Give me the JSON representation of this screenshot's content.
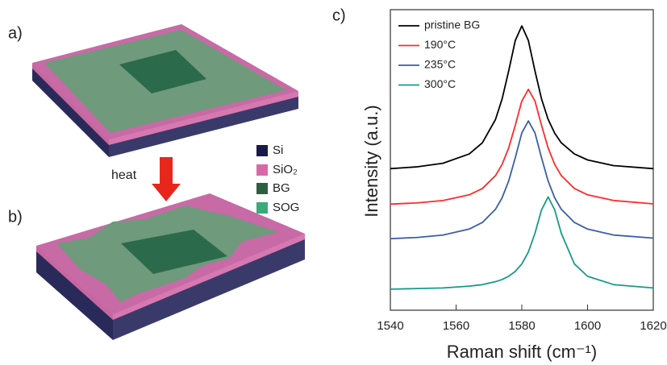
{
  "figure": {
    "panel_labels": [
      "a)",
      "b)",
      "c)"
    ],
    "arrow_label": "heat",
    "legend": [
      "Si",
      "SiO₂",
      "BG",
      "SOG"
    ]
  },
  "chart_data": {
    "type": "line",
    "xlabel": "Raman shift (cm⁻¹)",
    "ylabel": "Intensity (a.u.)",
    "x": [
      1540,
      1548,
      1556,
      1564,
      1568,
      1572,
      1574,
      1576,
      1578,
      1580,
      1582,
      1584,
      1586,
      1588,
      1590,
      1592,
      1596,
      1600,
      1608,
      1620
    ],
    "series": [
      {
        "name": "pristine BG",
        "color": "#000000",
        "values": [
          4.71,
          4.77,
          4.89,
          5.2,
          5.57,
          6.35,
          7.03,
          7.96,
          8.97,
          9.46,
          8.97,
          7.96,
          7.03,
          6.35,
          5.89,
          5.57,
          5.2,
          5.0,
          4.81,
          4.71
        ]
      },
      {
        "name": "190°C",
        "color": "#ff2a2a",
        "values": [
          3.53,
          3.57,
          3.65,
          3.84,
          4.05,
          4.48,
          4.85,
          5.4,
          6.15,
          6.96,
          7.35,
          6.96,
          6.15,
          5.4,
          4.85,
          4.48,
          4.05,
          3.84,
          3.65,
          3.54
        ]
      },
      {
        "name": "235°C",
        "color": "#3a5fa8",
        "values": [
          2.38,
          2.42,
          2.5,
          2.7,
          2.92,
          3.36,
          3.74,
          4.3,
          5.07,
          5.9,
          6.3,
          5.9,
          5.07,
          4.3,
          3.74,
          3.36,
          2.92,
          2.7,
          2.5,
          2.4
        ]
      },
      {
        "name": "300°C",
        "color": "#179a8a",
        "values": [
          0.7,
          0.72,
          0.74,
          0.8,
          0.85,
          0.95,
          1.02,
          1.13,
          1.29,
          1.54,
          1.94,
          2.56,
          3.34,
          3.77,
          3.34,
          2.56,
          1.54,
          1.13,
          0.85,
          0.74
        ]
      }
    ],
    "xlim": [
      1540,
      1620
    ],
    "xticks": [
      1540,
      1560,
      1580,
      1600,
      1620
    ],
    "ylim": [
      0,
      10
    ],
    "legend": "upper left"
  }
}
